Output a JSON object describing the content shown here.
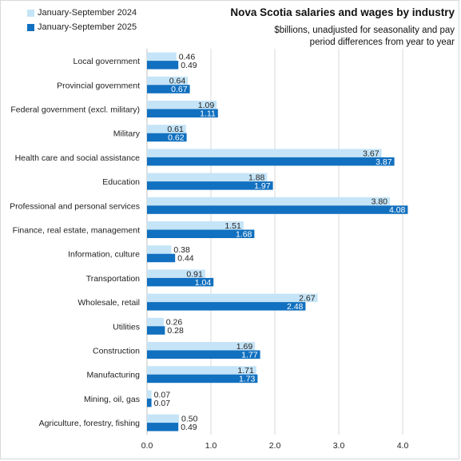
{
  "chart_data": {
    "type": "bar",
    "orientation": "horizontal",
    "title": "Nova Scotia salaries and wages by industry",
    "subtitle": "$billions, unadjusted for seasonality and pay period differences from year to year",
    "categories": [
      "Local government",
      "Provincial government",
      "Federal government (excl. military)",
      "Military",
      "Health care and social assistance",
      "Education",
      "Professional and personal services",
      "Finance, real estate, management",
      "Information, culture",
      "Transportation",
      "Wholesale, retail",
      "Utilities",
      "Construction",
      "Manufacturing",
      "Mining, oil, gas",
      "Agriculture, forestry, fishing"
    ],
    "series": [
      {
        "name": "January-September 2024",
        "color": "#c5e4f7",
        "values": [
          0.46,
          0.64,
          1.09,
          0.61,
          3.67,
          1.88,
          3.8,
          1.51,
          0.38,
          0.91,
          2.67,
          0.26,
          1.69,
          1.71,
          0.07,
          0.5
        ],
        "labels": [
          "0.46",
          "0.64",
          "1.09",
          "0.61",
          "3.67",
          "1.88",
          "3.80",
          "1.51",
          "0.38",
          "0.91",
          "2.67",
          "0.26",
          "1.69",
          "1.71",
          "0.07",
          "0.50"
        ]
      },
      {
        "name": "January-September 2025",
        "color": "#1170bf",
        "values": [
          0.49,
          0.67,
          1.11,
          0.62,
          3.87,
          1.97,
          4.08,
          1.68,
          0.44,
          1.04,
          2.48,
          0.28,
          1.77,
          1.73,
          0.07,
          0.49
        ],
        "labels": [
          "0.49",
          "0.67",
          "1.11",
          "0.62",
          "3.87",
          "1.97",
          "4.08",
          "1.68",
          "0.44",
          "1.04",
          "2.48",
          "0.28",
          "1.77",
          "1.73",
          "0.07",
          "0.49"
        ]
      }
    ],
    "xlim": [
      0,
      4.5
    ],
    "xticks": [
      0,
      1,
      2,
      3,
      4
    ],
    "xtick_labels": [
      "0.0",
      "1.0",
      "2.0",
      "3.0",
      "4.0"
    ],
    "grid": "vertical",
    "legend": "top-left"
  }
}
